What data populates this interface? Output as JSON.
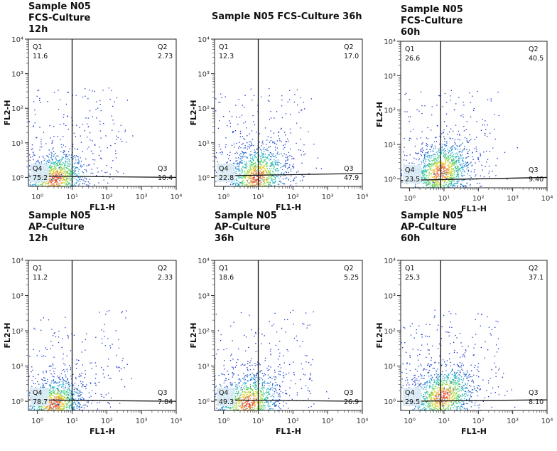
{
  "colors": {
    "density_low": "#1428c8",
    "density_mid": "#1eb4d2",
    "density_high": "#46d264",
    "density_peak": "#f0dc32",
    "density_max": "#e63c28",
    "gate_line": "#111111",
    "gate_label_bg": "#dcebf5"
  },
  "chart_data": [
    {
      "type": "scatter",
      "title": "Sample N05\nFCS-Culture\n12h",
      "xlabel": "FL1-H",
      "ylabel": "FL2-H",
      "xscale": "log",
      "yscale": "log",
      "xlim": [
        0.55,
        10000
      ],
      "ylim": [
        0.55,
        10000
      ],
      "x_ticks": [
        "10⁰",
        "10¹",
        "10²",
        "10³",
        "10⁴"
      ],
      "y_ticks": [
        "10⁰",
        "10¹",
        "10²",
        "10³",
        "10⁴"
      ],
      "gate": {
        "x": 10,
        "y_left": 1.1,
        "y_right": 1.0
      },
      "quadrants": [
        {
          "label": "Q1",
          "value": "11.6"
        },
        {
          "label": "Q2",
          "value": "2.73"
        },
        {
          "label": "Q3",
          "value": "10.4"
        },
        {
          "label": "Q4",
          "value": "75.2"
        }
      ],
      "population_center": [
        3.2,
        0.9
      ],
      "population_spread": [
        0.42,
        0.38
      ]
    },
    {
      "type": "scatter",
      "title": "Sample N05 FCS-Culture 36h",
      "xlabel": "FL1-H",
      "ylabel": "FL2-H",
      "xscale": "log",
      "yscale": "log",
      "xlim": [
        0.55,
        10000
      ],
      "ylim": [
        0.55,
        10000
      ],
      "x_ticks": [
        "10⁰",
        "10¹",
        "10²",
        "10³",
        "10⁴"
      ],
      "y_ticks": [
        "10⁰",
        "10¹",
        "10²",
        "10³",
        "10⁴"
      ],
      "gate": {
        "x": 10,
        "y_left": 1.1,
        "y_right": 1.3
      },
      "quadrants": [
        {
          "label": "Q1",
          "value": "12.3"
        },
        {
          "label": "Q2",
          "value": "17.0"
        },
        {
          "label": "Q3",
          "value": "47.9"
        },
        {
          "label": "Q4",
          "value": "22.8"
        }
      ],
      "population_center": [
        9.0,
        1.0
      ],
      "population_spread": [
        0.42,
        0.45
      ]
    },
    {
      "type": "scatter",
      "title": "Sample N05\nFCS-Culture\n60h",
      "xlabel": "FL1-H",
      "ylabel": "FL2-H",
      "xscale": "log",
      "yscale": "log",
      "xlim": [
        0.55,
        10000
      ],
      "ylim": [
        0.55,
        10000
      ],
      "x_ticks": [
        "10⁰",
        "10¹",
        "10²",
        "10³",
        "10⁴"
      ],
      "y_ticks": [
        "10⁰",
        "10¹",
        "10²",
        "10³",
        "10⁴"
      ],
      "gate": {
        "x": 8,
        "y_left": 0.9,
        "y_right": 1.1
      },
      "quadrants": [
        {
          "label": "Q1",
          "value": "26.6"
        },
        {
          "label": "Q2",
          "value": "40.5"
        },
        {
          "label": "Q3",
          "value": "9.40"
        },
        {
          "label": "Q4",
          "value": "23.5"
        }
      ],
      "population_center": [
        8.0,
        1.6
      ],
      "population_spread": [
        0.42,
        0.42
      ]
    },
    {
      "type": "scatter",
      "title": "Sample N05\nAP-Culture\n12h",
      "xlabel": "FL1-H",
      "ylabel": "FL2-H",
      "xscale": "log",
      "yscale": "log",
      "xlim": [
        0.55,
        10000
      ],
      "ylim": [
        0.55,
        10000
      ],
      "x_ticks": [
        "10⁰",
        "10¹",
        "10²",
        "10³",
        "10⁴"
      ],
      "y_ticks": [
        "10⁰",
        "10¹",
        "10²",
        "10³",
        "10⁴"
      ],
      "gate": {
        "x": 10,
        "y_left": 1.1,
        "y_right": 1.0
      },
      "quadrants": [
        {
          "label": "Q1",
          "value": "11.2"
        },
        {
          "label": "Q2",
          "value": "2.33"
        },
        {
          "label": "Q3",
          "value": "7.84"
        },
        {
          "label": "Q4",
          "value": "78.7"
        }
      ],
      "population_center": [
        3.0,
        0.85
      ],
      "population_spread": [
        0.4,
        0.36
      ]
    },
    {
      "type": "scatter",
      "title": "Sample N05\nAP-Culture\n36h",
      "xlabel": "FL1-H",
      "ylabel": "FL2-H",
      "xscale": "log",
      "yscale": "log",
      "xlim": [
        0.55,
        10000
      ],
      "ylim": [
        0.55,
        10000
      ],
      "x_ticks": [
        "10⁰",
        "10¹",
        "10²",
        "10³",
        "10⁴"
      ],
      "y_ticks": [
        "10⁰",
        "10¹",
        "10²",
        "10³",
        "10⁴"
      ],
      "gate": {
        "x": 10,
        "y_left": 1.1,
        "y_right": 1.0
      },
      "quadrants": [
        {
          "label": "Q1",
          "value": "18.6"
        },
        {
          "label": "Q2",
          "value": "5.25"
        },
        {
          "label": "Q3",
          "value": "26.9"
        },
        {
          "label": "Q4",
          "value": "49.3"
        }
      ],
      "population_center": [
        5.0,
        0.9
      ],
      "population_spread": [
        0.45,
        0.42
      ]
    },
    {
      "type": "scatter",
      "title": "Sample N05\nAP-Culture\n60h",
      "xlabel": "FL1-H",
      "ylabel": "FL2-H",
      "xscale": "log",
      "yscale": "log",
      "xlim": [
        0.55,
        10000
      ],
      "ylim": [
        0.55,
        10000
      ],
      "x_ticks": [
        "10⁰",
        "10¹",
        "10²",
        "10³",
        "10⁴"
      ],
      "y_ticks": [
        "10⁰",
        "10¹",
        "10²",
        "10³",
        "10⁴"
      ],
      "gate": {
        "x": 8,
        "y_left": 1.0,
        "y_right": 1.1
      },
      "quadrants": [
        {
          "label": "Q1",
          "value": "25.3"
        },
        {
          "label": "Q2",
          "value": "37.1"
        },
        {
          "label": "Q3",
          "value": "8.10"
        },
        {
          "label": "Q4",
          "value": "29.5"
        }
      ],
      "population_center": [
        9.0,
        1.4
      ],
      "population_spread": [
        0.45,
        0.4
      ]
    }
  ]
}
